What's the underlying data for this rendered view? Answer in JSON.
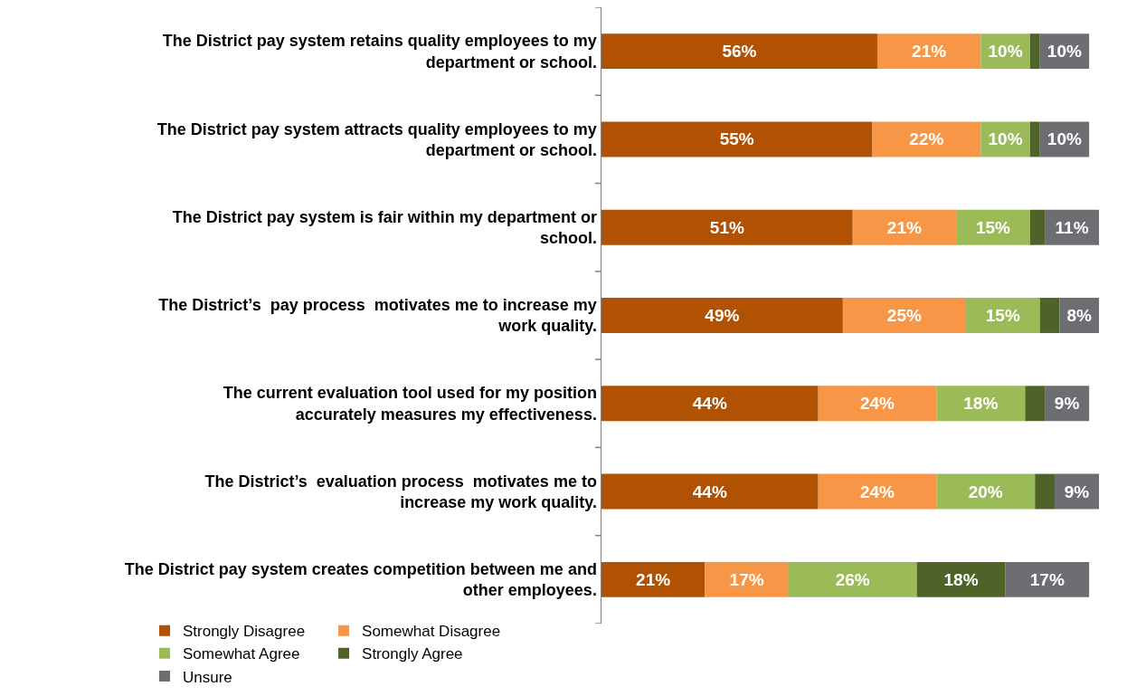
{
  "chart_data": {
    "type": "bar",
    "orientation": "horizontal",
    "stacked": true,
    "legend": "bottom",
    "grid": false,
    "categories": [
      "The District pay system retains quality employees to my department or school.",
      "The District pay system attracts quality employees to my department or school.",
      "The District pay system is fair within my department or school.",
      "The District’s  pay process  motivates me to increase my work quality.",
      "The current evaluation tool used for my position accurately measures my effectiveness.",
      "The District’s  evaluation process  motivates me to increase my work quality.",
      "The District pay system creates competition between me and other employees."
    ],
    "series": [
      {
        "name": "Strongly Disagree",
        "color": "#b05104",
        "values": [
          56,
          55,
          51,
          49,
          44,
          44,
          21
        ],
        "value_labels": [
          "56%",
          "55%",
          "51%",
          "49%",
          "44%",
          "44%",
          "21%"
        ]
      },
      {
        "name": "Somewhat Disagree",
        "color": "#f79646",
        "values": [
          21,
          22,
          21,
          25,
          24,
          24,
          17
        ],
        "value_labels": [
          "21%",
          "22%",
          "21%",
          "25%",
          "24%",
          "24%",
          "17%"
        ]
      },
      {
        "name": "Somewhat Agree",
        "color": "#9bbb59",
        "values": [
          10,
          10,
          15,
          15,
          18,
          20,
          26
        ],
        "value_labels": [
          "10%",
          "10%",
          "15%",
          "15%",
          "18%",
          "20%",
          "26%"
        ]
      },
      {
        "name": "Strongly Agree",
        "color": "#4f6228",
        "values": [
          2,
          2,
          3,
          4,
          4,
          4,
          18
        ],
        "value_labels": [
          null,
          null,
          null,
          null,
          null,
          null,
          "18%"
        ]
      },
      {
        "name": "Unsure",
        "color": "#6d6e71",
        "values": [
          10,
          10,
          11,
          8,
          9,
          9,
          17
        ],
        "value_labels": [
          "10%",
          "10%",
          "11%",
          "8%",
          "9%",
          "9%",
          "17%"
        ]
      }
    ]
  }
}
